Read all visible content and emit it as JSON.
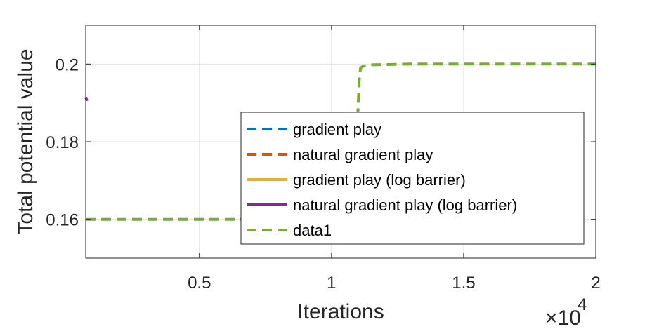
{
  "chart_data": {
    "type": "line",
    "xlabel": "Iterations",
    "ylabel": "Total potential value",
    "x_exponent_base": "×10",
    "x_exponent_power": "4",
    "xlim": [
      0.07,
      2.0
    ],
    "ylim": [
      0.15,
      0.21
    ],
    "x_ticks": [
      0.5,
      1,
      1.5,
      2
    ],
    "x_tick_labels": [
      "0.5",
      "1",
      "1.5",
      "2"
    ],
    "y_ticks": [
      0.16,
      0.18,
      0.2
    ],
    "y_tick_labels": [
      "0.16",
      "0.18",
      "0.2"
    ],
    "grid": true,
    "legend_position": "center-right",
    "series": [
      {
        "name": "gradient play",
        "color": "#0072BD",
        "style": "dashed",
        "x": [],
        "y": []
      },
      {
        "name": "natural gradient play",
        "color": "#D95319",
        "style": "dashed",
        "x": [],
        "y": []
      },
      {
        "name": "gradient play (log barrier)",
        "color": "#EDB120",
        "style": "solid",
        "x": [],
        "y": []
      },
      {
        "name": "natural gradient play (log barrier)",
        "color": "#7E2F8E",
        "style": "solid",
        "x": [
          0.07,
          0.075
        ],
        "y": [
          0.1915,
          0.1905
        ]
      },
      {
        "name": "data1",
        "color": "#77AC30",
        "style": "dashed",
        "x": [
          0.07,
          0.5,
          0.9,
          1.05,
          1.09,
          1.095,
          1.1,
          1.105,
          1.11,
          1.12,
          1.15,
          1.3,
          1.6,
          2.0
        ],
        "y": [
          0.16,
          0.16,
          0.16,
          0.16,
          0.16,
          0.175,
          0.188,
          0.196,
          0.199,
          0.1995,
          0.1998,
          0.2,
          0.2,
          0.2
        ]
      }
    ]
  }
}
